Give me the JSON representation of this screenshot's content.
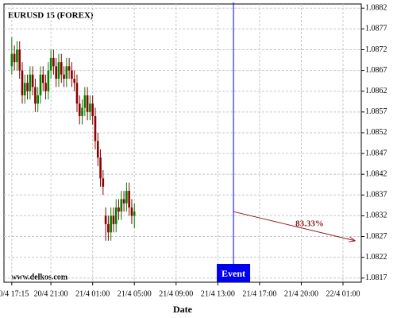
{
  "chart_data": {
    "type": "candlestick",
    "title": "EURUSD 15 (FOREX)",
    "watermark": "www.delkos.com",
    "xlabel": "Date",
    "x": [
      0,
      1,
      2,
      3,
      4,
      5,
      6,
      7,
      8,
      9,
      10,
      11,
      12,
      13,
      14,
      15,
      16,
      17,
      18,
      19,
      20,
      21,
      22,
      23,
      24,
      25,
      26,
      27,
      28,
      29,
      30,
      31,
      32,
      33,
      34,
      35,
      36,
      37,
      38,
      39,
      40,
      41,
      42,
      43,
      44,
      45,
      46,
      47
    ],
    "open": [
      1.0868,
      1.0871,
      1.0869,
      1.0872,
      1.0867,
      1.0861,
      1.0864,
      1.0862,
      1.0866,
      1.0863,
      1.0859,
      1.0861,
      1.0866,
      1.0864,
      1.0862,
      1.0867,
      1.087,
      1.0868,
      1.0865,
      1.0869,
      1.0866,
      1.0865,
      1.0868,
      1.0867,
      1.0865,
      1.0864,
      1.0859,
      1.0856,
      1.0858,
      1.0861,
      1.0857,
      1.0859,
      1.0856,
      1.085,
      1.0846,
      1.0841,
      1.0832,
      1.083,
      1.0828,
      1.0832,
      1.083,
      1.0834,
      1.0833,
      1.0836,
      1.0835,
      1.0838,
      1.0834,
      1.0832
    ],
    "high": [
      1.0875,
      1.0873,
      1.0874,
      1.0874,
      1.0869,
      1.0866,
      1.0866,
      1.0868,
      1.0868,
      1.0865,
      1.0863,
      1.0868,
      1.0868,
      1.0866,
      1.0869,
      1.0872,
      1.0872,
      1.087,
      1.0871,
      1.0871,
      1.0868,
      1.087,
      1.087,
      1.0869,
      1.0867,
      1.0866,
      1.0861,
      1.086,
      1.0863,
      1.0863,
      1.0861,
      1.0861,
      1.0858,
      1.0852,
      1.0848,
      1.0843,
      1.0834,
      1.0832,
      1.0834,
      1.0834,
      1.0836,
      1.0836,
      1.0838,
      1.0838,
      1.084,
      1.084,
      1.0836,
      1.0835
    ],
    "low": [
      1.0866,
      1.0867,
      1.0867,
      1.0865,
      1.0859,
      1.0859,
      1.086,
      1.086,
      1.0861,
      1.0857,
      1.0857,
      1.0859,
      1.0862,
      1.086,
      1.086,
      1.0865,
      1.0866,
      1.0863,
      1.0863,
      1.0864,
      1.0863,
      1.0863,
      1.0865,
      1.0863,
      1.0862,
      1.0857,
      1.0854,
      1.0854,
      1.0856,
      1.0855,
      1.0855,
      1.0854,
      1.0848,
      1.0844,
      1.0839,
      1.0837,
      1.0826,
      1.0826,
      1.0826,
      1.0828,
      1.0828,
      1.0831,
      1.0831,
      1.0833,
      1.0833,
      1.0832,
      1.083,
      1.0829
    ],
    "close": [
      1.0871,
      1.0869,
      1.0872,
      1.0867,
      1.0861,
      1.0864,
      1.0862,
      1.0866,
      1.0863,
      1.0859,
      1.0861,
      1.0866,
      1.0864,
      1.0862,
      1.0867,
      1.087,
      1.0868,
      1.0865,
      1.0869,
      1.0866,
      1.0865,
      1.0868,
      1.0867,
      1.0865,
      1.0864,
      1.0859,
      1.0856,
      1.0858,
      1.0861,
      1.0857,
      1.0859,
      1.0856,
      1.085,
      1.0846,
      1.0841,
      1.0839,
      1.083,
      1.0828,
      1.0832,
      1.083,
      1.0834,
      1.0833,
      1.0836,
      1.0835,
      1.0838,
      1.0834,
      1.0832,
      1.0833
    ],
    "up_color": "#008000",
    "down_color": "#8b0000",
    "xlim": [
      -3,
      134
    ],
    "ylim": [
      1.0816,
      1.0883
    ],
    "xticks": [
      {
        "value": 0,
        "label": "20/4 17:15"
      },
      {
        "value": 15,
        "label": "20/4 21:00"
      },
      {
        "value": 31,
        "label": "21/4 01:00"
      },
      {
        "value": 47,
        "label": "21/4 05:00"
      },
      {
        "value": 63,
        "label": "21/4 09:00"
      },
      {
        "value": 79,
        "label": "21/4 13:00"
      },
      {
        "value": 95,
        "label": "21/4 17:00"
      },
      {
        "value": 111,
        "label": "21/4 20:00"
      },
      {
        "value": 127,
        "label": "22/4 01:00"
      }
    ],
    "yticks": [
      1.0882,
      1.0877,
      1.0872,
      1.0867,
      1.0862,
      1.0857,
      1.0852,
      1.0847,
      1.0842,
      1.0837,
      1.0832,
      1.0827,
      1.0822,
      1.0817
    ],
    "grid": true,
    "event": {
      "label": "Event",
      "x": 85,
      "color": "#0000ee"
    },
    "forecast": {
      "x": [
        85,
        131.5
      ],
      "y": [
        1.0833,
        1.0826
      ],
      "value": 83.33,
      "label": "83.33%",
      "color": "#8b1a1a"
    }
  }
}
